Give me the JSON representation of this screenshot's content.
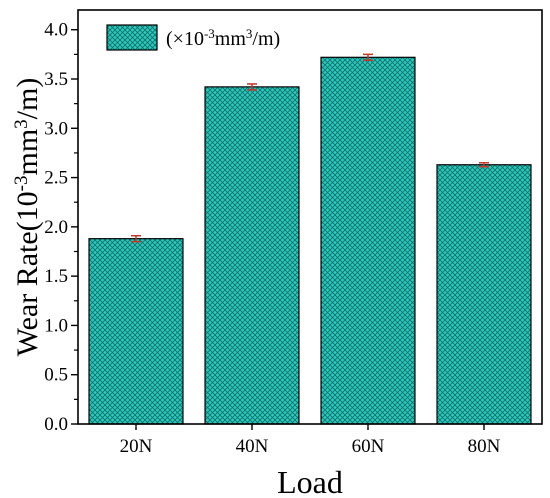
{
  "chart_data": {
    "type": "bar",
    "title": "",
    "xlabel": "Load",
    "ylabel": {
      "base": "Wear Rate(10",
      "exp1": "-3",
      "mid": "mm",
      "exp2": "3",
      "tail": "/m)"
    },
    "categories": [
      "20N",
      "40N",
      "60N",
      "80N"
    ],
    "series": [
      {
        "legend": {
          "pre": "(×10",
          "exp1": "-3",
          "mid": "mm",
          "exp2": "3",
          "tail": "/m)"
        },
        "values": [
          1.88,
          3.42,
          3.72,
          2.63
        ],
        "errors": [
          0.03,
          0.03,
          0.03,
          0.02
        ]
      }
    ],
    "ylim": [
      0,
      4.2
    ],
    "yticks": [
      "0.0",
      "0.5",
      "1.0",
      "1.5",
      "2.0",
      "2.5",
      "3.0",
      "3.5",
      "4.0"
    ],
    "grid": false,
    "legend_position": "top-left",
    "bar_color": "#2ec9be",
    "bar_pattern_color": "#0e6f68",
    "error_bar_color": "#c0392b"
  }
}
